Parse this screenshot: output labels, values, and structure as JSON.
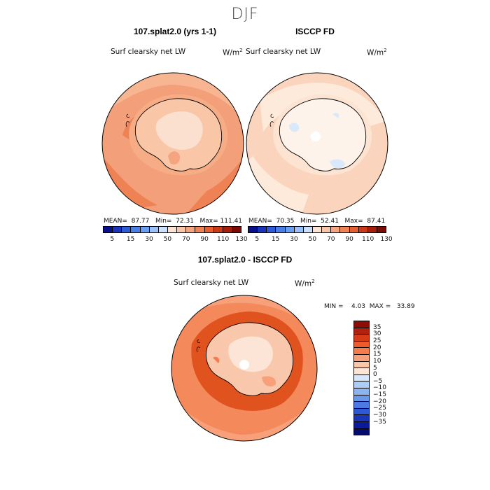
{
  "title": "DJF",
  "panels": [
    {
      "heading": "107.splat2.0 (yrs 1-1)",
      "var_label": "Surf clearsky net LW",
      "units": "W/m",
      "units_sup": "2",
      "mean_text": "MEAN=  87.77   Min=  72.31   Max= 111.41",
      "stats": {
        "mean": 87.77,
        "min": 72.31,
        "max": 111.41
      }
    },
    {
      "heading": "ISCCP FD",
      "var_label": "Surf clearsky net LW",
      "units": "W/m",
      "units_sup": "2",
      "mean_text": "MEAN=  70.35   Min=  52.41   Max=  87.41",
      "stats": {
        "mean": 70.35,
        "min": 52.41,
        "max": 87.41
      }
    }
  ],
  "abs_colorbar": {
    "colors": [
      "#08108a",
      "#1a35b8",
      "#2e5bd6",
      "#4a7fe6",
      "#6a9ef0",
      "#9cc1f6",
      "#cde0fb",
      "#fbe4d4",
      "#f8c5a8",
      "#f4a47e",
      "#ef8254",
      "#e45e31",
      "#cd3a17",
      "#a81f0c",
      "#7a0c05"
    ],
    "ticks": [
      "5",
      "15",
      "30",
      "50",
      "70",
      "90",
      "110",
      "130"
    ]
  },
  "diff": {
    "heading": "107.splat2.0 - ISCCP FD",
    "var_label": "Surf clearsky net LW",
    "units": "W/m",
    "units_sup": "2",
    "minmax_text": "MIN =    4.03  MAX =   33.89",
    "stats": {
      "min": 4.03,
      "max": 33.89
    }
  },
  "diff_colorbar": {
    "colors": [
      "#8b0d06",
      "#b3200d",
      "#d63a17",
      "#ee5a2c",
      "#f47c4d",
      "#f7a079",
      "#f9c6a8",
      "#fce5d6",
      "#d6e6fb",
      "#aecdf6",
      "#8cb4f0",
      "#6a97ea",
      "#4c79e3",
      "#3158d4",
      "#1a35b8",
      "#0b1a9a",
      "#040a6e"
    ],
    "ticks": [
      "35",
      "30",
      "25",
      "20",
      "15",
      "10",
      "5",
      "0",
      "−5",
      "−10",
      "−15",
      "−20",
      "−25",
      "−30",
      "−35"
    ]
  },
  "map_colors": {
    "ocean_model": "#f3a07a",
    "ocean_model_dark": "#ef8254",
    "ant_model": "#f9c6a8",
    "ant_model_light": "#fbe0cf",
    "ocean_obs": "#fbd4bd",
    "ant_obs": "#fdf3ea",
    "ice_blue": "#d9e8fa",
    "diff_ocean": "#f4895c",
    "diff_dark": "#e0531f",
    "diff_ant": "#f9c8ac"
  }
}
